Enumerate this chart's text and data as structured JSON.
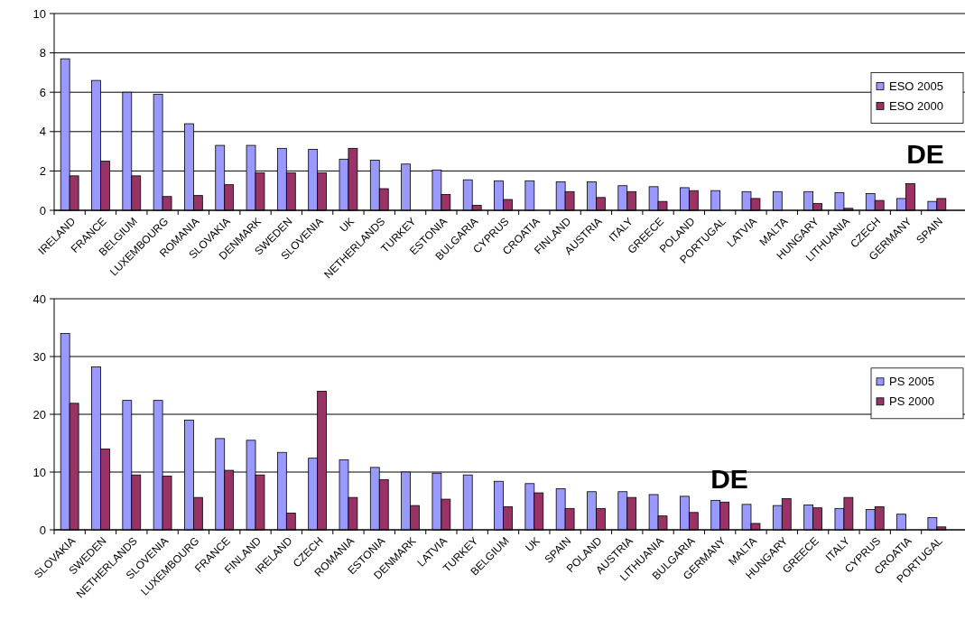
{
  "chart_data": [
    {
      "type": "bar",
      "categories": [
        "IRELAND",
        "FRANCE",
        "BELGIUM",
        "LUXEMBOURG",
        "ROMANIA",
        "SLOVAKIA",
        "DENMARK",
        "SWEDEN",
        "SLOVENIA",
        "UK",
        "NETHERLANDS",
        "TURKEY",
        "ESTONIA",
        "BULGARIA",
        "CYPRUS",
        "CROATIA",
        "FINLAND",
        "AUSTRIA",
        "ITALY",
        "GREECE",
        "POLAND",
        "PORTUGAL",
        "LATVIA",
        "MALTA",
        "HUNGARY",
        "LITHUANIA",
        "CZECH",
        "GERMANY",
        "SPAIN"
      ],
      "series": [
        {
          "name": "ESO 2005",
          "color": "#9999ff",
          "values": [
            7.7,
            6.6,
            6.0,
            5.9,
            4.4,
            3.3,
            3.3,
            3.15,
            3.1,
            2.6,
            2.55,
            2.35,
            2.05,
            1.55,
            1.5,
            1.5,
            1.45,
            1.45,
            1.25,
            1.2,
            1.15,
            1.0,
            0.95,
            0.95,
            0.95,
            0.9,
            0.85,
            0.6,
            0.45
          ]
        },
        {
          "name": "ESO 2000",
          "color": "#993366",
          "values": [
            1.75,
            2.5,
            1.75,
            0.7,
            0.75,
            1.3,
            1.9,
            1.9,
            1.9,
            3.15,
            1.1,
            null,
            0.8,
            0.25,
            0.55,
            null,
            0.95,
            0.65,
            0.95,
            0.45,
            1.0,
            null,
            0.6,
            null,
            0.35,
            0.1,
            0.5,
            1.35,
            0.6
          ]
        }
      ],
      "ylim": [
        0,
        10
      ],
      "yticks": [
        0,
        2,
        4,
        6,
        8,
        10
      ],
      "grid": "y",
      "legend": "right",
      "annotations": [
        "DE"
      ]
    },
    {
      "type": "bar",
      "categories": [
        "SLOVAKIA",
        "SWEDEN",
        "NETHERLANDS",
        "SLOVENIA",
        "LUXEMBOURG",
        "FRANCE",
        "FINLAND",
        "IRELAND",
        "CZECH",
        "ROMANIA",
        "ESTONIA",
        "DENMARK",
        "LATVIA",
        "TURKEY",
        "BELGIUM",
        "UK",
        "SPAIN",
        "POLAND",
        "AUSTRIA",
        "LITHUANIA",
        "BULGARIA",
        "GERMANY",
        "MALTA",
        "HUNGARY",
        "GREECE",
        "ITALY",
        "CYPRUS",
        "CROATIA",
        "PORTUGAL"
      ],
      "series": [
        {
          "name": "PS 2005",
          "color": "#9999ff",
          "values": [
            34,
            28.2,
            22.4,
            22.4,
            19,
            15.8,
            15.5,
            13.4,
            12.4,
            12.1,
            10.8,
            10,
            9.8,
            9.5,
            8.4,
            8,
            7.1,
            6.6,
            6.6,
            6.1,
            5.8,
            5.1,
            4.4,
            4.2,
            4.3,
            3.7,
            3.5,
            2.7,
            2.1
          ]
        },
        {
          "name": "PS 2000",
          "color": "#993366",
          "values": [
            21.9,
            14,
            9.5,
            9.3,
            5.6,
            10.3,
            9.5,
            2.9,
            24,
            5.6,
            8.7,
            4.2,
            5.3,
            null,
            4.0,
            6.4,
            3.7,
            3.7,
            5.6,
            2.4,
            3.0,
            4.8,
            1.1,
            5.4,
            3.8,
            5.6,
            4.0,
            null,
            0.5
          ]
        }
      ],
      "ylim": [
        0,
        40
      ],
      "yticks": [
        0,
        10,
        20,
        30,
        40
      ],
      "grid": "y",
      "legend": "right",
      "annotations": [
        "DE"
      ]
    }
  ]
}
